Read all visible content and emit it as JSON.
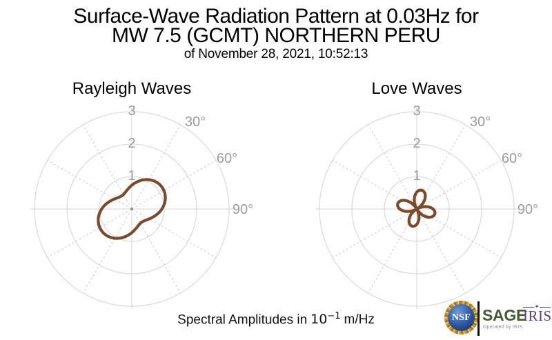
{
  "header": {
    "title_line1": "Surface-Wave Radiation Pattern at 0.03Hz for",
    "title_line2": "MW 7.5 (GCMT) NORTHERN PERU",
    "date_line": "of November 28, 2021, 10:52:13"
  },
  "footer": {
    "prefix": "Spectral Amplitudes in",
    "base": "10",
    "exponent": "−1",
    "suffix": "m/Hz"
  },
  "branding": {
    "nsf_label": "NSF",
    "sage_label": "SAGE",
    "sage_sub": "Operated by IRIS",
    "iris_label": "IRIS",
    "icons": {
      "iris_compass_star": "✦"
    },
    "colors": {
      "sage_green": "#465a31",
      "iris_purple": "#5d3a94",
      "nsf_blue": "#1f4680",
      "nsf_gold": "#c79a33",
      "divider_black": "#121212"
    }
  },
  "chart_data": [
    {
      "type": "line",
      "projection": "polar",
      "title": "Rayleigh Waves",
      "grid": true,
      "r_axis": {
        "ticks": [
          1,
          2,
          3
        ],
        "max": 3
      },
      "theta_axis": {
        "tick_angles_deg": [
          30,
          60,
          90
        ],
        "tick_labels": [
          "30°",
          "60°",
          "90°"
        ],
        "spoke_interval_deg": 30,
        "zero": "up",
        "direction": "clockwise"
      },
      "units": "10^-1 m/Hz",
      "series": [
        {
          "name": "rayleigh-radiation-pattern",
          "color": "#7a4a2d",
          "points_deg_r": [
            [
              0,
              0.731
            ],
            [
              5,
              0.785
            ],
            [
              10,
              0.841
            ],
            [
              15,
              0.897
            ],
            [
              20,
              0.95
            ],
            [
              25,
              1.0
            ],
            [
              30,
              1.044
            ],
            [
              35,
              1.082
            ],
            [
              40,
              1.113
            ],
            [
              45,
              1.134
            ],
            [
              50,
              1.147
            ],
            [
              55,
              1.15
            ],
            [
              60,
              1.143
            ],
            [
              65,
              1.127
            ],
            [
              70,
              1.101
            ],
            [
              75,
              1.068
            ],
            [
              80,
              1.027
            ],
            [
              85,
              0.98
            ],
            [
              90,
              0.929
            ],
            [
              95,
              0.875
            ],
            [
              100,
              0.819
            ],
            [
              105,
              0.763
            ],
            [
              110,
              0.71
            ],
            [
              115,
              0.66
            ],
            [
              120,
              0.616
            ],
            [
              125,
              0.578
            ],
            [
              130,
              0.547
            ],
            [
              135,
              0.526
            ],
            [
              140,
              0.513
            ],
            [
              145,
              0.51
            ],
            [
              150,
              0.517
            ],
            [
              155,
              0.533
            ],
            [
              160,
              0.559
            ],
            [
              165,
              0.592
            ],
            [
              170,
              0.633
            ],
            [
              175,
              0.68
            ],
            [
              180,
              0.731
            ],
            [
              185,
              0.785
            ],
            [
              190,
              0.841
            ],
            [
              195,
              0.897
            ],
            [
              200,
              0.95
            ],
            [
              205,
              1.0
            ],
            [
              210,
              1.044
            ],
            [
              215,
              1.082
            ],
            [
              220,
              1.113
            ],
            [
              225,
              1.134
            ],
            [
              230,
              1.147
            ],
            [
              235,
              1.15
            ],
            [
              240,
              1.143
            ],
            [
              245,
              1.127
            ],
            [
              250,
              1.101
            ],
            [
              255,
              1.068
            ],
            [
              260,
              1.027
            ],
            [
              265,
              0.98
            ],
            [
              270,
              0.929
            ],
            [
              275,
              0.875
            ],
            [
              280,
              0.819
            ],
            [
              285,
              0.763
            ],
            [
              290,
              0.71
            ],
            [
              295,
              0.66
            ],
            [
              300,
              0.616
            ],
            [
              305,
              0.578
            ],
            [
              310,
              0.547
            ],
            [
              315,
              0.526
            ],
            [
              320,
              0.513
            ],
            [
              325,
              0.51
            ],
            [
              330,
              0.517
            ],
            [
              335,
              0.533
            ],
            [
              340,
              0.559
            ],
            [
              345,
              0.592
            ],
            [
              350,
              0.633
            ],
            [
              355,
              0.68
            ]
          ]
        }
      ]
    },
    {
      "type": "line",
      "projection": "polar",
      "title": "Love Waves",
      "grid": true,
      "r_axis": {
        "ticks": [
          1,
          2,
          3
        ],
        "max": 3
      },
      "theta_axis": {
        "tick_angles_deg": [
          30,
          60,
          90
        ],
        "tick_labels": [
          "30°",
          "60°",
          "90°"
        ],
        "spoke_interval_deg": 30,
        "zero": "up",
        "direction": "clockwise"
      },
      "units": "10^-1 m/Hz",
      "series": [
        {
          "name": "love-radiation-pattern",
          "color": "#7a4a2d",
          "points_deg_r": [
            [
              0,
              0.52
            ],
            [
              5,
              0.564
            ],
            [
              10,
              0.591
            ],
            [
              15,
              0.6
            ],
            [
              20,
              0.591
            ],
            [
              25,
              0.564
            ],
            [
              30,
              0.52
            ],
            [
              35,
              0.46
            ],
            [
              40,
              0.386
            ],
            [
              45,
              0.3
            ],
            [
              50,
              0.205
            ],
            [
              55,
              0.104
            ],
            [
              60,
              0.0
            ],
            [
              65,
              0.101
            ],
            [
              70,
              0.198
            ],
            [
              75,
              0.29
            ],
            [
              80,
              0.373
            ],
            [
              85,
              0.444
            ],
            [
              90,
              0.502
            ],
            [
              95,
              0.545
            ],
            [
              100,
              0.571
            ],
            [
              105,
              0.58
            ],
            [
              110,
              0.571
            ],
            [
              115,
              0.545
            ],
            [
              120,
              0.502
            ],
            [
              125,
              0.444
            ],
            [
              130,
              0.373
            ],
            [
              135,
              0.29
            ],
            [
              140,
              0.198
            ],
            [
              145,
              0.101
            ],
            [
              150,
              0.0
            ],
            [
              155,
              0.096
            ],
            [
              160,
              0.188
            ],
            [
              165,
              0.275
            ],
            [
              170,
              0.354
            ],
            [
              175,
              0.421
            ],
            [
              180,
              0.476
            ],
            [
              185,
              0.517
            ],
            [
              190,
              0.542
            ],
            [
              195,
              0.55
            ],
            [
              200,
              0.542
            ],
            [
              205,
              0.517
            ],
            [
              210,
              0.476
            ],
            [
              215,
              0.421
            ],
            [
              220,
              0.354
            ],
            [
              225,
              0.275
            ],
            [
              230,
              0.188
            ],
            [
              235,
              0.096
            ],
            [
              240,
              0.0
            ],
            [
              245,
              0.106
            ],
            [
              250,
              0.209
            ],
            [
              255,
              0.305
            ],
            [
              260,
              0.392
            ],
            [
              265,
              0.467
            ],
            [
              270,
              0.528
            ],
            [
              275,
              0.573
            ],
            [
              280,
              0.601
            ],
            [
              285,
              0.61
            ],
            [
              290,
              0.601
            ],
            [
              295,
              0.573
            ],
            [
              300,
              0.528
            ],
            [
              305,
              0.467
            ],
            [
              310,
              0.392
            ],
            [
              315,
              0.305
            ],
            [
              320,
              0.209
            ],
            [
              325,
              0.106
            ],
            [
              330,
              0.0
            ],
            [
              335,
              0.104
            ],
            [
              340,
              0.205
            ],
            [
              345,
              0.3
            ],
            [
              350,
              0.386
            ],
            [
              355,
              0.46
            ]
          ]
        }
      ]
    }
  ]
}
